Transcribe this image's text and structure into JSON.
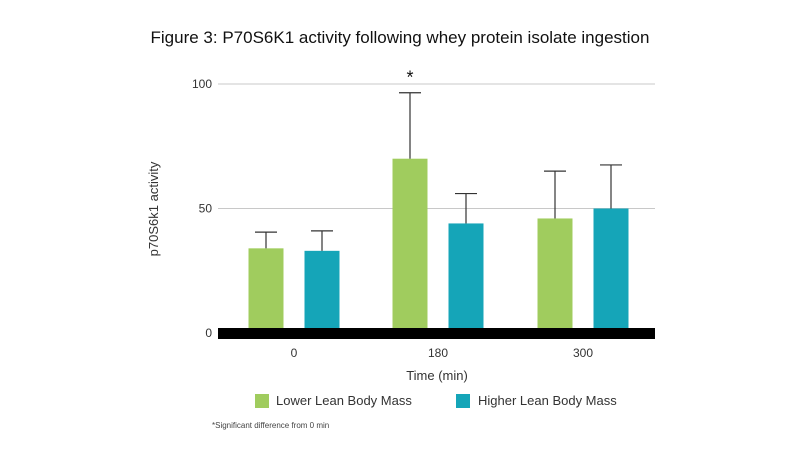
{
  "chart_data": {
    "type": "bar",
    "title": "Figure 3: P70S6K1 activity following whey protein isolate ingestion",
    "xlabel": "Time (min)",
    "ylabel": "p70S6k1 activity",
    "categories": [
      "0",
      "180",
      "300"
    ],
    "yticks": [
      "0",
      "50",
      "100"
    ],
    "ylim": [
      0,
      100
    ],
    "grid": true,
    "legend_position": "bottom",
    "series": [
      {
        "name": "Lower Lean Body Mass",
        "color": "#a0cc5e",
        "values": [
          34,
          70,
          46
        ],
        "errors": [
          6.5,
          26.5,
          19
        ]
      },
      {
        "name": "Higher Lean Body Mass",
        "color": "#15a5b8",
        "values": [
          33,
          44,
          50
        ],
        "errors": [
          8,
          12,
          17.5
        ]
      }
    ],
    "annotations": [
      {
        "category": "180",
        "series": 0,
        "text": "*"
      }
    ],
    "footnote": "*Significant difference from 0 min"
  }
}
